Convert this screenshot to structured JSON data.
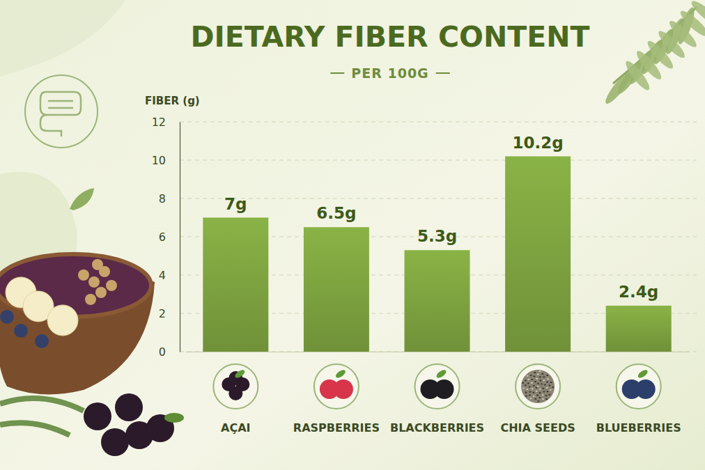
{
  "chart_data": {
    "type": "bar",
    "title": "DIETARY FIBER CONTENT",
    "subtitle": "PER 100G",
    "y_label": "FIBER (g)",
    "categories": [
      "AÇAI",
      "RASPBERRIES",
      "BLACKBERRIES",
      "CHIA SEEDS",
      "BLUEBERRIES"
    ],
    "values": [
      7,
      6.5,
      5.3,
      10.2,
      2.4
    ],
    "value_labels": [
      "7g",
      "6.5g",
      "5.3g",
      "10.2g",
      "2.4g"
    ],
    "color": "#7a9e3e",
    "ylim": [
      0,
      12
    ],
    "yticks": [
      0,
      2,
      4,
      6,
      8,
      10,
      12
    ],
    "grid": true,
    "data_labels": true
  }
}
